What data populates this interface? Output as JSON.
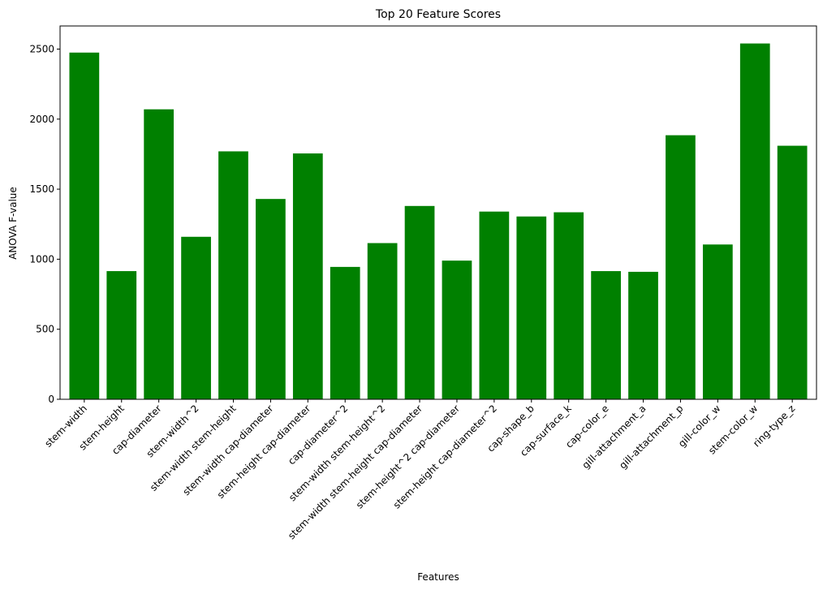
{
  "chart_data": {
    "type": "bar",
    "title": "Top 20 Feature Scores",
    "xlabel": "Features",
    "ylabel": "ANOVA F-value",
    "categories": [
      "stem-width",
      "stem-height",
      "cap-diameter",
      "stem-width^2",
      "stem-width stem-height",
      "stem-width cap-diameter",
      "stem-height cap-diameter",
      "cap-diameter^2",
      "stem-width stem-height^2",
      "stem-width stem-height cap-diameter",
      "stem-height^2 cap-diameter",
      "stem-height cap-diameter^2",
      "cap-shape_b",
      "cap-surface_k",
      "cap-color_e",
      "gill-attachment_a",
      "gill-attachment_p",
      "gill-color_w",
      "stem-color_w",
      "ring-type_z"
    ],
    "values": [
      2475,
      915,
      2070,
      1160,
      1770,
      1430,
      1755,
      945,
      1115,
      1380,
      990,
      1340,
      1305,
      1335,
      915,
      910,
      1885,
      1105,
      2540,
      1810
    ],
    "yticks": [
      0,
      500,
      1000,
      1500,
      2000,
      2500
    ],
    "ylim": [
      0,
      2665
    ],
    "bar_color": "#008000",
    "grid": false
  }
}
